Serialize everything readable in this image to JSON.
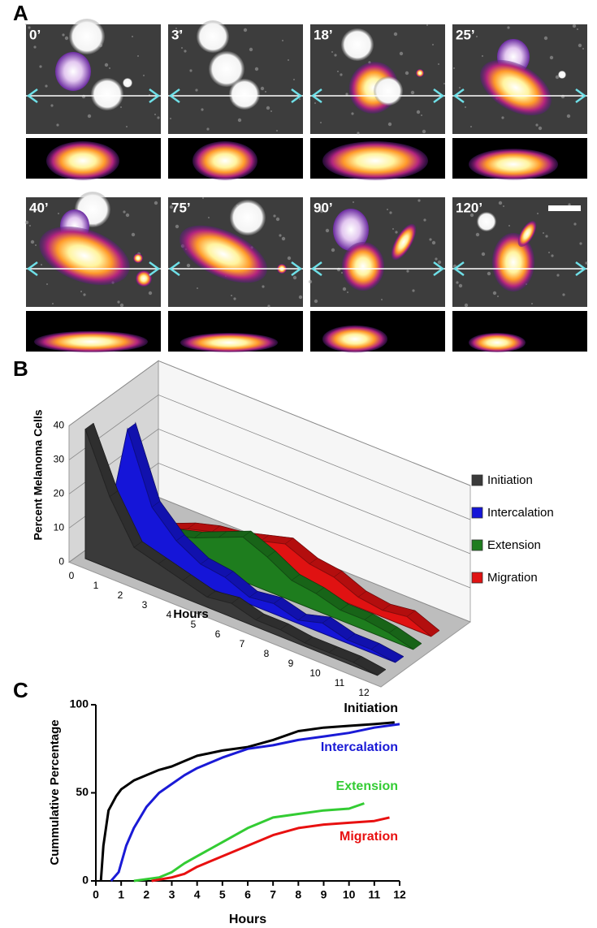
{
  "panel_a": {
    "label": "A",
    "frames": [
      "0’",
      "3’",
      "18’",
      "25’",
      "40’",
      "75’",
      "90’",
      "120’"
    ]
  },
  "chart_data": [
    {
      "type": "area3d",
      "panel_label": "B",
      "y_label": "Percent Melanoma Cells",
      "x_label": "Hours",
      "categories": [
        "0",
        "1",
        "2",
        "3",
        "4",
        "5",
        "6",
        "7",
        "8",
        "9",
        "10",
        "11",
        "12"
      ],
      "ylim": [
        0,
        40
      ],
      "yticks": [
        0,
        10,
        20,
        30,
        40
      ],
      "grid": true,
      "series": [
        {
          "name": "Initiation",
          "color": "#3a3a3a",
          "values": [
            38,
            21,
            9,
            7,
            5,
            3,
            4,
            2,
            2,
            1,
            1,
            1,
            0
          ]
        },
        {
          "name": "Intercalation",
          "color": "#1515d8",
          "values": [
            0,
            37,
            17,
            10,
            6,
            5,
            2,
            3,
            1,
            3,
            1,
            1,
            0
          ]
        },
        {
          "name": "Extension",
          "color": "#1e7d1e",
          "values": [
            0,
            0,
            5,
            7,
            10,
            13,
            10,
            6,
            5,
            3,
            3,
            2,
            0
          ]
        },
        {
          "name": "Migration",
          "color": "#e01212",
          "values": [
            0,
            0,
            3,
            5,
            6,
            8,
            10,
            7,
            6,
            3,
            2,
            3,
            0
          ]
        }
      ]
    },
    {
      "type": "line",
      "panel_label": "C",
      "y_label": "Cummulative Percentage",
      "x_label": "Hours",
      "xlim": [
        0,
        12
      ],
      "ylim": [
        0,
        100
      ],
      "xticks": [
        0,
        1,
        2,
        3,
        4,
        5,
        6,
        7,
        8,
        9,
        10,
        11,
        12
      ],
      "yticks": [
        0,
        50,
        100
      ],
      "series": [
        {
          "name": "Initiation",
          "color": "#000000",
          "x": [
            0.2,
            0.3,
            0.5,
            0.8,
            1,
            1.5,
            2,
            2.5,
            3,
            3.5,
            4,
            5,
            6,
            7,
            8,
            9,
            10,
            11,
            11.8
          ],
          "values": [
            0,
            20,
            40,
            48,
            52,
            57,
            60,
            63,
            65,
            68,
            71,
            74,
            76,
            80,
            85,
            87,
            88,
            89,
            90
          ]
        },
        {
          "name": "Intercalation",
          "color": "#1a1ad6",
          "x": [
            0.6,
            0.9,
            1.2,
            1.5,
            2,
            2.5,
            3,
            3.5,
            4,
            5,
            6,
            7,
            8,
            9,
            10,
            11,
            12
          ],
          "values": [
            0,
            5,
            20,
            30,
            42,
            50,
            55,
            60,
            64,
            70,
            75,
            77,
            80,
            82,
            84,
            87,
            89
          ]
        },
        {
          "name": "Extension",
          "color": "#33cc33",
          "x": [
            1.5,
            2.5,
            3,
            3.5,
            4,
            5,
            6,
            7,
            8,
            9,
            10,
            10.6
          ],
          "values": [
            0,
            2,
            5,
            10,
            14,
            22,
            30,
            36,
            38,
            40,
            41,
            44
          ]
        },
        {
          "name": "Migration",
          "color": "#e81010",
          "x": [
            2.2,
            3,
            3.5,
            4,
            5,
            6,
            7,
            8,
            9,
            10,
            11,
            11.6
          ],
          "values": [
            0,
            2,
            4,
            8,
            14,
            20,
            26,
            30,
            32,
            33,
            34,
            36
          ]
        }
      ]
    }
  ]
}
